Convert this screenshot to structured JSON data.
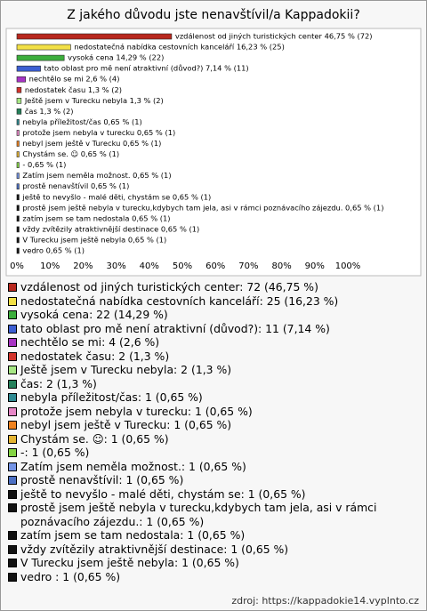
{
  "chart_data": {
    "type": "bar",
    "orientation": "horizontal",
    "title": "Z jakého důvodu jste nenavštívil/a Kappadokii?",
    "values": [
      46.75,
      16.23,
      14.29,
      7.14,
      2.6,
      1.3,
      1.3,
      1.3,
      0.65,
      0.65,
      0.65,
      0.65,
      0.65,
      0.65,
      0.65,
      0.65,
      0.65,
      0.65,
      0.65,
      0.65,
      0.65
    ],
    "value_labels": [
      "vzdálenost od jiných turistických center 46,75 % (72)",
      "nedostatečná nabídka cestovních kanceláří 16,23 % (25)",
      "vysoká cena 14,29 % (22)",
      "tato oblast pro mě není atraktivní (důvod?) 7,14 % (11)",
      "nechtělo se mi 2,6 % (4)",
      "nedostatek času 1,3 % (2)",
      "Ještě jsem v Turecku nebyla 1,3 % (2)",
      "čas 1,3 % (2)",
      "nebyla příležitost/čas 0,65 % (1)",
      "protože jsem nebyla v turecku 0,65 % (1)",
      "nebyl jsem ještě v Turecku 0,65 % (1)",
      "Chystám se. ☺ 0,65 % (1)",
      "- 0,65 % (1)",
      "Zatím jsem neměla možnost. 0,65 % (1)",
      "prostě nenavštívil 0,65 % (1)",
      "ještě to nevyšlo - malé děti, chystám se 0,65 % (1)",
      "prostě jsem ještě nebyla v turecku,kdybych tam jela, asi v rámci poznávacího zájezdu. 0,65 % (1)",
      "zatím jsem se tam nedostala 0,65 % (1)",
      "vždy zvítězily atraktivnější destinace 0,65 % (1)",
      "V Turecku jsem ještě nebyla 0,65 % (1)",
      "vedro 0,65 % (1)"
    ],
    "legend": [
      "vzdálenost od jiných turistických center: 72 (46,75 %)",
      "nedostatečná nabídka cestovních kanceláří: 25 (16,23 %)",
      "vysoká cena: 22 (14,29 %)",
      "tato oblast pro mě není atraktivní (důvod?): 11 (7,14 %)",
      "nechtělo se mi: 4 (2,6 %)",
      "nedostatek času: 2 (1,3 %)",
      "Ještě jsem v Turecku nebyla: 2 (1,3 %)",
      "čas: 2 (1,3 %)",
      "nebyla příležitost/čas: 1 (0,65 %)",
      "protože jsem nebyla v turecku: 1 (0,65 %)",
      "nebyl jsem ještě v Turecku: 1 (0,65 %)",
      "Chystám se. ☺: 1 (0,65 %)",
      "-: 1 (0,65 %)",
      "Zatím jsem neměla možnost.: 1 (0,65 %)",
      "prostě nenavštívil: 1 (0,65 %)",
      "ještě to nevyšlo - malé děti, chystám se: 1 (0,65 %)",
      "prostě jsem ještě nebyla v turecku,kdybych tam jela, asi v rámci poznávacího zájezdu.: 1 (0,65 %)",
      "zatím jsem se tam nedostala: 1 (0,65 %)",
      "vždy zvítězily atraktivnější destinace: 1 (0,65 %)",
      "V Turecku jsem ještě nebyla: 1 (0,65 %)",
      "vedro : 1 (0,65 %)"
    ],
    "colors": [
      "#b8281e",
      "#f2e046",
      "#3cae3c",
      "#3c5ed2",
      "#a834c4",
      "#d2342c",
      "#a6e684",
      "#24805a",
      "#2e8a92",
      "#e686c6",
      "#f0821e",
      "#e4b432",
      "#84d444",
      "#7494e6",
      "#4c70c4",
      "#111111",
      "#111111",
      "#111111",
      "#111111",
      "#111111",
      "#111111"
    ],
    "xlim": [
      0,
      100
    ],
    "xticks": [
      {
        "value": 0,
        "label": "0%"
      },
      {
        "value": 10,
        "label": "10%"
      },
      {
        "value": 20,
        "label": "20%"
      },
      {
        "value": 30,
        "label": "30%"
      },
      {
        "value": 40,
        "label": "40%"
      },
      {
        "value": 50,
        "label": "50%"
      },
      {
        "value": 60,
        "label": "60%"
      },
      {
        "value": 70,
        "label": "70%"
      },
      {
        "value": 80,
        "label": "80%"
      },
      {
        "value": 90,
        "label": "90%"
      },
      {
        "value": 100,
        "label": "100%"
      }
    ],
    "source": "zdroj: https://kappadokie14.vyplnto.cz"
  }
}
